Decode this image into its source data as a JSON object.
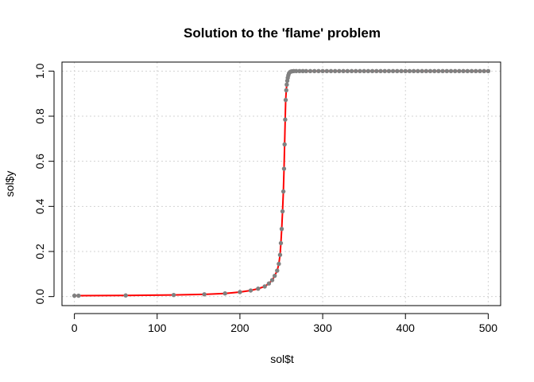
{
  "chart_data": {
    "type": "line",
    "title": "Solution to the 'flame' problem",
    "xlabel": "sol$t",
    "ylabel": "sol$y",
    "xlim": [
      -15,
      515
    ],
    "ylim": [
      -0.04,
      1.04
    ],
    "xticks": [
      0,
      100,
      200,
      300,
      400,
      500
    ],
    "yticks": [
      0.0,
      0.2,
      0.4,
      0.6,
      0.8,
      1.0
    ],
    "xtick_labels": [
      "0",
      "100",
      "200",
      "300",
      "400",
      "500"
    ],
    "ytick_labels": [
      "0.0",
      "0.2",
      "0.4",
      "0.6",
      "0.8",
      "1.0"
    ],
    "grid": true,
    "line_color": "#ff0000",
    "point_color": "#808080",
    "series": [
      {
        "x": [
          0,
          5,
          62,
          120,
          157,
          182,
          200,
          213,
          222,
          230,
          235,
          239,
          242,
          245,
          247,
          248.5,
          249.5,
          250.5,
          251.5,
          252.5,
          253.3,
          254,
          254.7,
          255.3,
          256,
          256.6,
          257.2,
          257.8,
          258.5,
          259.3,
          260.3,
          261.5,
          263,
          265,
          268,
          272,
          276,
          280,
          285,
          290,
          295,
          300,
          305,
          310,
          315,
          320,
          325,
          330,
          335,
          340,
          345,
          350,
          355,
          360,
          365,
          370,
          375,
          380,
          385,
          390,
          395,
          400,
          405,
          410,
          415,
          420,
          425,
          430,
          435,
          440,
          445,
          450,
          455,
          460,
          465,
          470,
          475,
          480,
          485,
          490,
          495,
          500
        ],
        "y": [
          0.004,
          0.004,
          0.005,
          0.007,
          0.01,
          0.014,
          0.02,
          0.027,
          0.035,
          0.045,
          0.058,
          0.073,
          0.092,
          0.115,
          0.145,
          0.185,
          0.237,
          0.3,
          0.378,
          0.466,
          0.567,
          0.675,
          0.785,
          0.872,
          0.915,
          0.94,
          0.957,
          0.97,
          0.981,
          0.99,
          0.995,
          0.998,
          0.999,
          1,
          1,
          1,
          1,
          1,
          1,
          1,
          1,
          1,
          1,
          1,
          1,
          1,
          1,
          1,
          1,
          1,
          1,
          1,
          1,
          1,
          1,
          1,
          1,
          1,
          1,
          1,
          1,
          1,
          1,
          1,
          1,
          1,
          1,
          1,
          1,
          1,
          1,
          1,
          1,
          1,
          1,
          1,
          1,
          1,
          1,
          1,
          1,
          1
        ]
      }
    ]
  }
}
